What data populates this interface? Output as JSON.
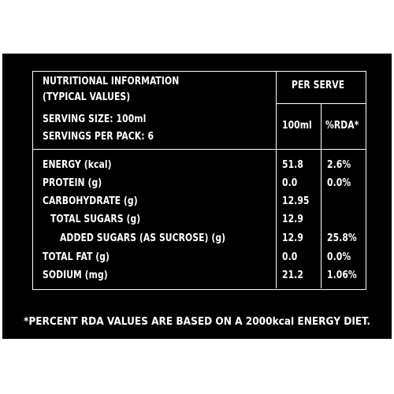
{
  "header": {
    "title_line1": "NUTRITIONAL INFORMATION",
    "title_line2": "(TYPICAL VALUES)",
    "serving_size": "SERVING SIZE: 100ml",
    "servings_per_pack": "SERVINGS PER PACK: 6",
    "per_serve": "PER SERVE",
    "col_100ml": "100ml",
    "col_rda": "%RDA*"
  },
  "rows": [
    {
      "label": "ENERGY (kcal)",
      "value": "51.8",
      "rda": "2.6%"
    },
    {
      "label": "PROTEIN (g)",
      "value": "0.0",
      "rda": "0.0%"
    },
    {
      "label": "CARBOHYDRATE (g)",
      "value": "12.95",
      "rda": ""
    },
    {
      "label": "TOTAL SUGARS (g)",
      "value": "12.9",
      "rda": ""
    },
    {
      "label": "ADDED SUGARS (AS SUCROSE) (g)",
      "value": "12.9",
      "rda": "25.8%"
    },
    {
      "label": "TOTAL FAT (g)",
      "value": "0.0",
      "rda": "0.0%"
    },
    {
      "label": "SODIUM (mg)",
      "value": "21.2",
      "rda": "1.06%"
    }
  ],
  "footnote": "*PERCENT RDA VALUES ARE BASED ON A 2000kcal ENERGY DIET."
}
